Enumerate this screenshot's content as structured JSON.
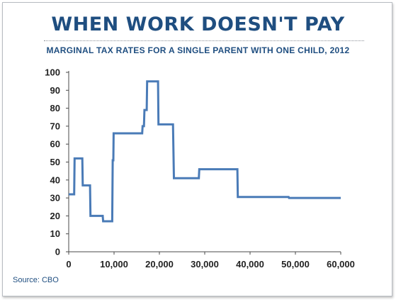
{
  "title": "WHEN WORK DOESN'T PAY",
  "subtitle": "MARGINAL TAX RATES FOR A SINGLE PARENT WITH ONE CHILD, 2012",
  "source": "Source: CBO",
  "colors": {
    "title": "#1f4e80",
    "line": "#4a7bb7",
    "axis": "#4a4a4a"
  },
  "chart_data": {
    "type": "line",
    "title": "WHEN WORK DOESN'T PAY",
    "subtitle": "MARGINAL TAX RATES FOR A SINGLE PARENT WITH ONE CHILD, 2012",
    "xlabel": "",
    "ylabel": "",
    "xlim": [
      0,
      60000
    ],
    "ylim": [
      0,
      100
    ],
    "grid": false,
    "legend": "none",
    "x_ticks": [
      0,
      10000,
      20000,
      30000,
      40000,
      50000,
      60000
    ],
    "x_tick_labels": [
      "0",
      "10,000",
      "20,000",
      "30,000",
      "40,000",
      "50,000",
      "60,000"
    ],
    "y_ticks": [
      0,
      10,
      20,
      30,
      40,
      50,
      60,
      70,
      80,
      90,
      100
    ],
    "y_tick_labels": [
      "0",
      "10",
      "20",
      "30",
      "40",
      "50",
      "60",
      "70",
      "80",
      "90",
      "100"
    ],
    "series": [
      {
        "x": [
          0,
          1200,
          1300,
          3000,
          3100,
          4700,
          4800,
          7500,
          7600,
          9600,
          9700,
          9850,
          9900,
          16200,
          16300,
          16600,
          16700,
          17200,
          17300,
          19700,
          19800,
          23000,
          23200,
          28700,
          28800,
          37200,
          37300,
          48500,
          48600,
          60000
        ],
        "y": [
          32,
          32,
          52,
          52,
          37,
          37,
          20,
          20,
          17,
          17,
          51,
          51,
          66,
          66,
          70,
          70,
          79,
          79,
          95,
          95,
          71,
          71,
          41,
          41,
          46,
          46,
          30.5,
          30.5,
          30,
          30
        ]
      }
    ]
  }
}
